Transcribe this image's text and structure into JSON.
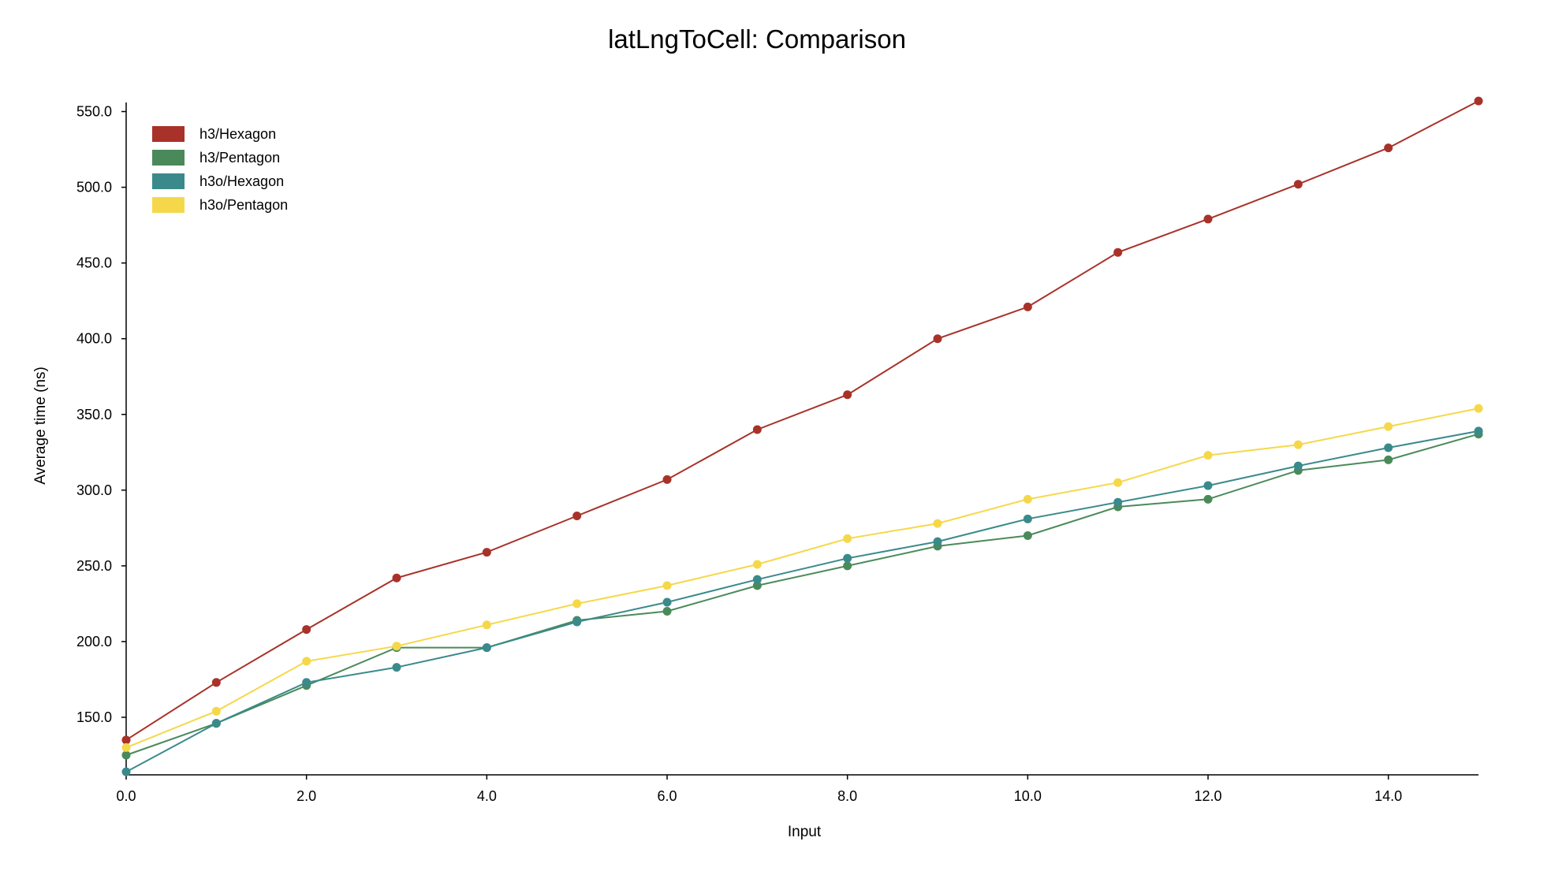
{
  "chart_data": {
    "type": "line",
    "title": "latLngToCell: Comparison",
    "xlabel": "Input",
    "ylabel": "Average time (ns)",
    "xlim": [
      0,
      15
    ],
    "ylim": [
      112,
      556
    ],
    "x_ticks": [
      0,
      2,
      4,
      6,
      8,
      10,
      12,
      14
    ],
    "x_tick_labels": [
      "0.0",
      "2.0",
      "4.0",
      "6.0",
      "8.0",
      "10.0",
      "12.0",
      "14.0"
    ],
    "y_ticks": [
      150,
      200,
      250,
      300,
      350,
      400,
      450,
      500,
      550
    ],
    "y_tick_labels": [
      "150.0",
      "200.0",
      "250.0",
      "300.0",
      "350.0",
      "400.0",
      "450.0",
      "500.0",
      "550.0"
    ],
    "grid": false,
    "legend_position": "top-left",
    "x": [
      0,
      1,
      2,
      3,
      4,
      5,
      6,
      7,
      8,
      9,
      10,
      11,
      12,
      13,
      14,
      15
    ],
    "series": [
      {
        "name": "h3/Hexagon",
        "color": "#a83229",
        "values": [
          135,
          173,
          208,
          242,
          259,
          283,
          307,
          340,
          363,
          400,
          421,
          457,
          479,
          502,
          526,
          557
        ]
      },
      {
        "name": "h3/Pentagon",
        "color": "#4a8a5a",
        "values": [
          125,
          146,
          171,
          196,
          196,
          214,
          220,
          237,
          250,
          263,
          270,
          289,
          294,
          313,
          320,
          337
        ]
      },
      {
        "name": "h3o/Hexagon",
        "color": "#3a8a8c",
        "values": [
          114,
          146,
          173,
          183,
          196,
          213,
          226,
          241,
          255,
          266,
          281,
          292,
          303,
          316,
          328,
          339
        ]
      },
      {
        "name": "h3o/Pentagon",
        "color": "#f5d84a",
        "values": [
          130,
          154,
          187,
          197,
          211,
          225,
          237,
          251,
          268,
          278,
          294,
          305,
          323,
          330,
          342,
          354
        ]
      }
    ]
  }
}
